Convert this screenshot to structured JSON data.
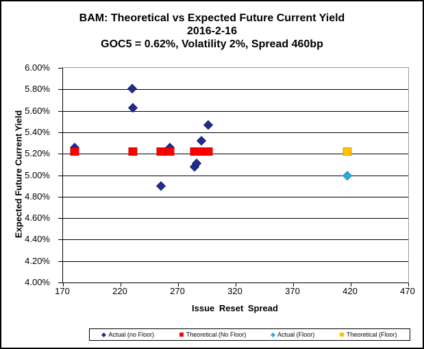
{
  "title": {
    "line1": "BAM: Theoretical vs Expected Future Current Yield",
    "line2": "2016-2-16",
    "line3": "GOC5 = 0.62%, Volatility 2%, Spread 460bp"
  },
  "chart_data": {
    "type": "scatter",
    "title": "BAM: Theoretical vs Expected Future Current Yield 2016-2-16 GOC5 = 0.62%, Volatility 2%, Spread 460bp",
    "xlabel": "Issue Reset Spread",
    "ylabel": "Expected Future Current Yield",
    "xlim": [
      170,
      470
    ],
    "ylim": [
      4.0,
      6.0
    ],
    "xticks": [
      170,
      220,
      270,
      320,
      370,
      420,
      470
    ],
    "xtick_labels": [
      "170",
      "220",
      "270",
      "320",
      "370",
      "420",
      "470"
    ],
    "yticks": [
      6.0,
      5.8,
      5.6,
      5.4,
      5.2,
      5.0,
      4.8,
      4.6,
      4.4,
      4.2,
      4.0
    ],
    "ytick_labels": [
      "6.00%",
      "5.80%",
      "5.60%",
      "5.40%",
      "5.20%",
      "5.00%",
      "4.80%",
      "4.60%",
      "4.40%",
      "4.20%",
      "4.00%"
    ],
    "grid": true,
    "legend_position": "bottom",
    "series": [
      {
        "name": "Actual (no Floor)",
        "marker": "diamond",
        "color": "#232C8F",
        "border_color": "#161D66",
        "points": [
          [
            180,
            5.26
          ],
          [
            230,
            5.81
          ],
          [
            231,
            5.63
          ],
          [
            255,
            4.9
          ],
          [
            263,
            5.26
          ],
          [
            284,
            5.08
          ],
          [
            286,
            5.11
          ],
          [
            290,
            5.32
          ],
          [
            296,
            5.47
          ]
        ]
      },
      {
        "name": "Theoretical (No Floor)",
        "marker": "square",
        "color": "#FF0000",
        "border_color": "#CC0000",
        "points": [
          [
            180,
            5.22
          ],
          [
            231,
            5.22
          ],
          [
            255,
            5.22
          ],
          [
            263,
            5.22
          ],
          [
            284,
            5.22
          ],
          [
            286,
            5.22
          ],
          [
            290,
            5.22
          ],
          [
            296,
            5.22
          ]
        ]
      },
      {
        "name": "Actual (Floor)",
        "marker": "diamond",
        "color": "#2BA9DF",
        "border_color": "#1C83B5",
        "points": [
          [
            417,
            5.0
          ]
        ]
      },
      {
        "name": "Theoretical (Floor)",
        "marker": "square",
        "color": "#FFC000",
        "border_color": "#D99F00",
        "points": [
          [
            417,
            5.22
          ]
        ]
      }
    ]
  }
}
